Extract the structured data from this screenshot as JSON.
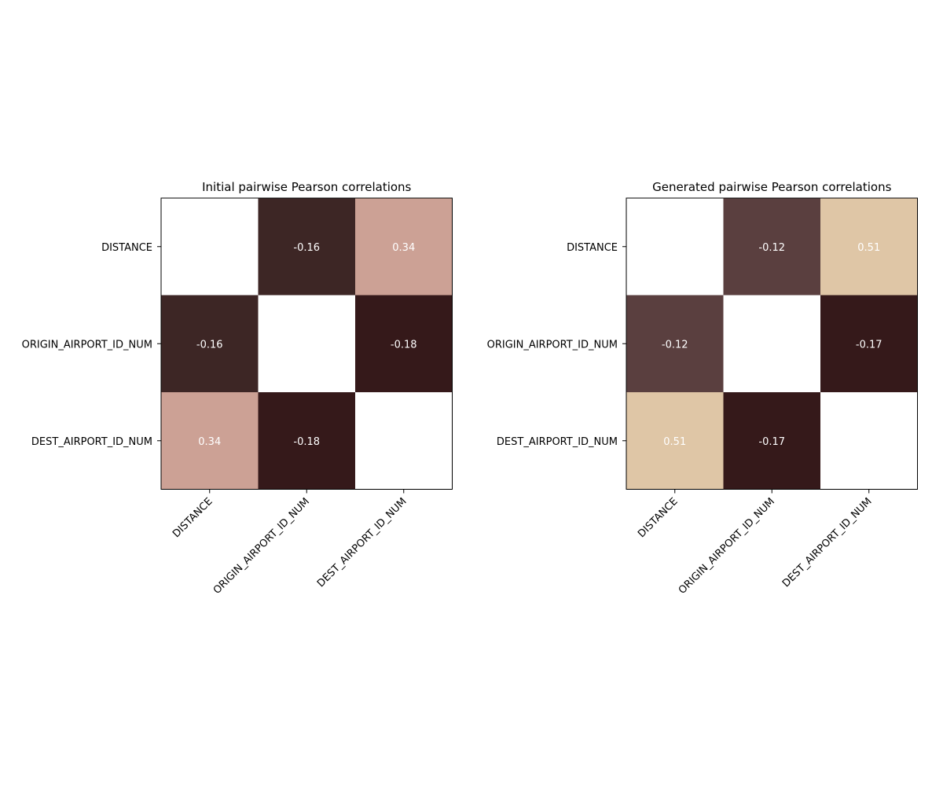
{
  "chart_data": [
    {
      "type": "heatmap",
      "title": "Initial pairwise Pearson correlations",
      "x_labels": [
        "DISTANCE",
        "ORIGIN_AIRPORT_ID_NUM",
        "DEST_AIRPORT_ID_NUM"
      ],
      "y_labels": [
        "DISTANCE",
        "ORIGIN_AIRPORT_ID_NUM",
        "DEST_AIRPORT_ID_NUM"
      ],
      "values": [
        [
          1.0,
          -0.16,
          0.34
        ],
        [
          -0.16,
          1.0,
          -0.18
        ],
        [
          0.34,
          -0.18,
          1.0
        ]
      ],
      "cell_labels": [
        [
          "",
          "-0.16",
          "0.34"
        ],
        [
          "-0.16",
          "",
          "-0.18"
        ],
        [
          "0.34",
          "-0.18",
          ""
        ]
      ],
      "cell_colors": [
        [
          "#ffffff",
          "#3d2625",
          "#cca195"
        ],
        [
          "#3d2625",
          "#ffffff",
          "#35191a"
        ],
        [
          "#cca195",
          "#35191a",
          "#ffffff"
        ]
      ],
      "label_color": "#ffffff",
      "grid": false
    },
    {
      "type": "heatmap",
      "title": "Generated pairwise Pearson correlations",
      "x_labels": [
        "DISTANCE",
        "ORIGIN_AIRPORT_ID_NUM",
        "DEST_AIRPORT_ID_NUM"
      ],
      "y_labels": [
        "DISTANCE",
        "ORIGIN_AIRPORT_ID_NUM",
        "DEST_AIRPORT_ID_NUM"
      ],
      "values": [
        [
          1.0,
          -0.12,
          0.51
        ],
        [
          -0.12,
          1.0,
          -0.17
        ],
        [
          0.51,
          -0.17,
          1.0
        ]
      ],
      "cell_labels": [
        [
          "",
          "-0.12",
          "0.51"
        ],
        [
          "-0.12",
          "",
          "-0.17"
        ],
        [
          "0.51",
          "-0.17",
          ""
        ]
      ],
      "cell_colors": [
        [
          "#ffffff",
          "#5a3f3f",
          "#dfc6a6"
        ],
        [
          "#5a3f3f",
          "#ffffff",
          "#35191a"
        ],
        [
          "#dfc6a6",
          "#35191a",
          "#ffffff"
        ]
      ],
      "label_color": "#ffffff",
      "grid": false
    }
  ]
}
